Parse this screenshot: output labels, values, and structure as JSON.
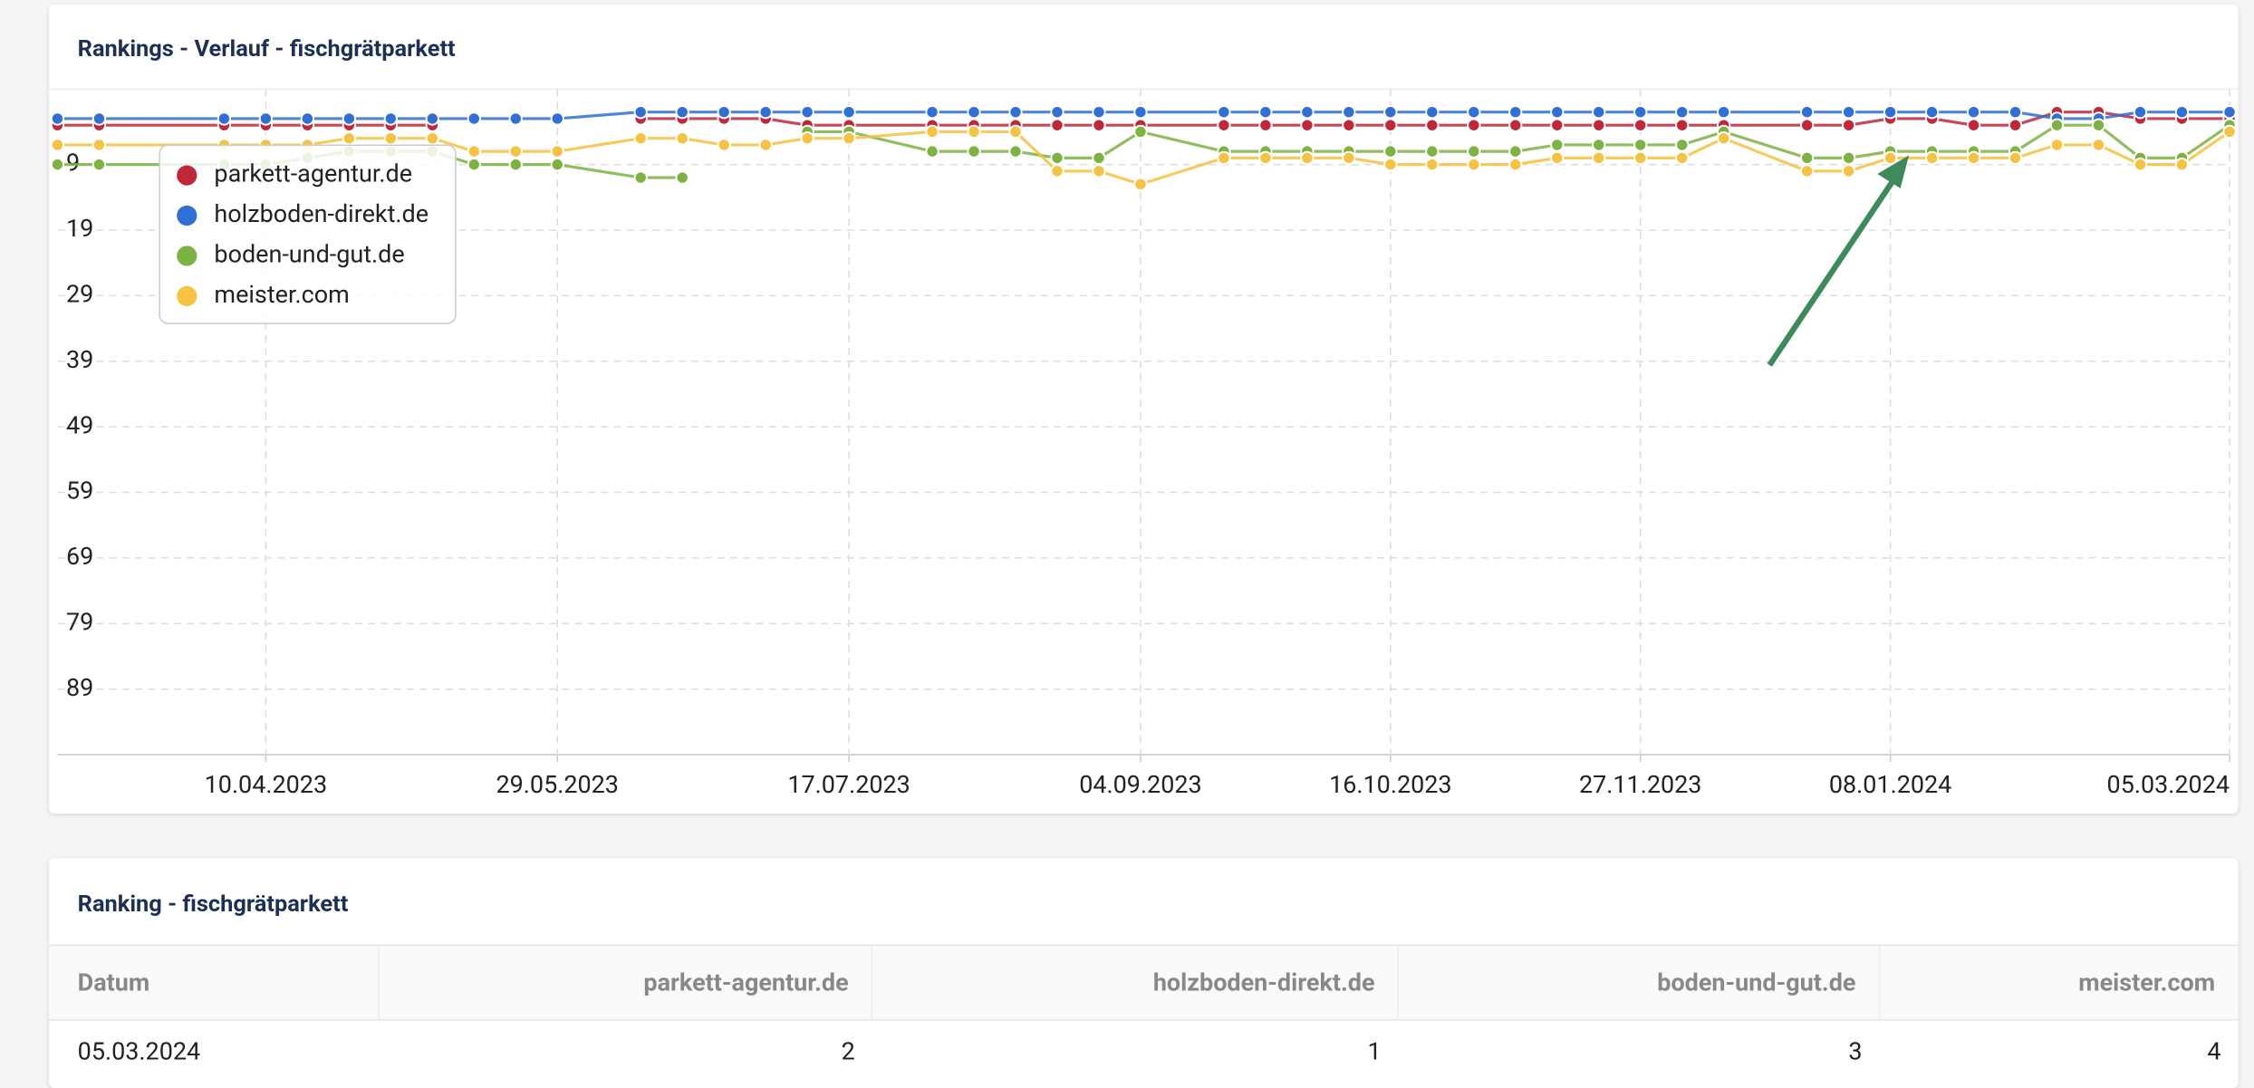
{
  "chart_data": {
    "type": "line",
    "title": "Rankings - Verlauf - fischgrätparkett",
    "x": [
      "06.03.2023",
      "13.03.2023",
      "03.04.2023",
      "10.04.2023",
      "17.04.2023",
      "24.04.2023",
      "01.05.2023",
      "08.05.2023",
      "15.05.2023",
      "22.05.2023",
      "29.05.2023",
      "12.06.2023",
      "19.06.2023",
      "26.06.2023",
      "03.07.2023",
      "10.07.2023",
      "17.07.2023",
      "31.07.2023",
      "07.08.2023",
      "14.08.2023",
      "21.08.2023",
      "28.08.2023",
      "04.09.2023",
      "18.09.2023",
      "25.09.2023",
      "02.10.2023",
      "09.10.2023",
      "16.10.2023",
      "23.10.2023",
      "30.10.2023",
      "06.11.2023",
      "13.11.2023",
      "20.11.2023",
      "27.11.2023",
      "04.12.2023",
      "11.12.2023",
      "25.12.2023",
      "01.01.2024",
      "08.01.2024",
      "15.01.2024",
      "22.01.2024",
      "29.01.2024",
      "05.02.2024",
      "12.02.2024",
      "19.02.2024",
      "26.02.2024",
      "05.03.2024"
    ],
    "series": [
      {
        "name": "parkett-agentur.de",
        "color": "#c0283a",
        "values": [
          3,
          3,
          3,
          3,
          3,
          3,
          3,
          3,
          null,
          null,
          null,
          2,
          2,
          2,
          2,
          3,
          3,
          3,
          3,
          3,
          3,
          3,
          3,
          3,
          3,
          3,
          3,
          3,
          3,
          3,
          3,
          3,
          3,
          3,
          3,
          3,
          3,
          3,
          2,
          2,
          3,
          3,
          1,
          1,
          2,
          2,
          2
        ]
      },
      {
        "name": "holzboden-direkt.de",
        "color": "#2f6fd6",
        "values": [
          2,
          2,
          2,
          2,
          2,
          2,
          2,
          2,
          2,
          2,
          2,
          1,
          1,
          1,
          1,
          1,
          1,
          1,
          1,
          1,
          1,
          1,
          1,
          1,
          1,
          1,
          1,
          1,
          1,
          1,
          1,
          1,
          1,
          1,
          1,
          1,
          1,
          1,
          1,
          1,
          1,
          1,
          2,
          2,
          1,
          1,
          1
        ]
      },
      {
        "name": "boden-und-gut.de",
        "color": "#7cb342",
        "values": [
          9,
          9,
          9,
          9,
          8,
          7,
          7,
          7,
          9,
          9,
          9,
          11,
          11,
          null,
          null,
          4,
          4,
          7,
          7,
          7,
          8,
          8,
          4,
          7,
          7,
          7,
          7,
          7,
          7,
          7,
          7,
          6,
          6,
          6,
          6,
          4,
          8,
          8,
          7,
          7,
          7,
          7,
          3,
          3,
          8,
          8,
          3
        ]
      },
      {
        "name": "meister.com",
        "color": "#f5c242",
        "values": [
          6,
          6,
          6,
          6,
          6,
          5,
          5,
          5,
          7,
          7,
          7,
          5,
          5,
          6,
          6,
          5,
          5,
          4,
          4,
          4,
          10,
          10,
          12,
          8,
          8,
          8,
          8,
          9,
          9,
          9,
          9,
          8,
          8,
          8,
          8,
          5,
          10,
          10,
          8,
          8,
          8,
          8,
          6,
          6,
          9,
          9,
          4
        ]
      }
    ],
    "xticks": [
      "10.04.2023",
      "29.05.2023",
      "17.07.2023",
      "04.09.2023",
      "16.10.2023",
      "27.11.2023",
      "08.01.2024",
      "05.03.2024"
    ],
    "ylim": [
      -2.5,
      99
    ],
    "yticks": [
      9,
      19,
      29,
      39,
      49,
      59,
      69,
      79,
      89
    ],
    "y_inverted": true,
    "grid": true,
    "legend": "top-left"
  },
  "table": {
    "title": "Ranking - fischgrätparkett",
    "columns": [
      "Datum",
      "parkett-agentur.de",
      "holzboden-direkt.de",
      "boden-und-gut.de",
      "meister.com"
    ],
    "rows": [
      [
        "05.03.2024",
        "2",
        "1",
        "3",
        "4"
      ]
    ]
  }
}
